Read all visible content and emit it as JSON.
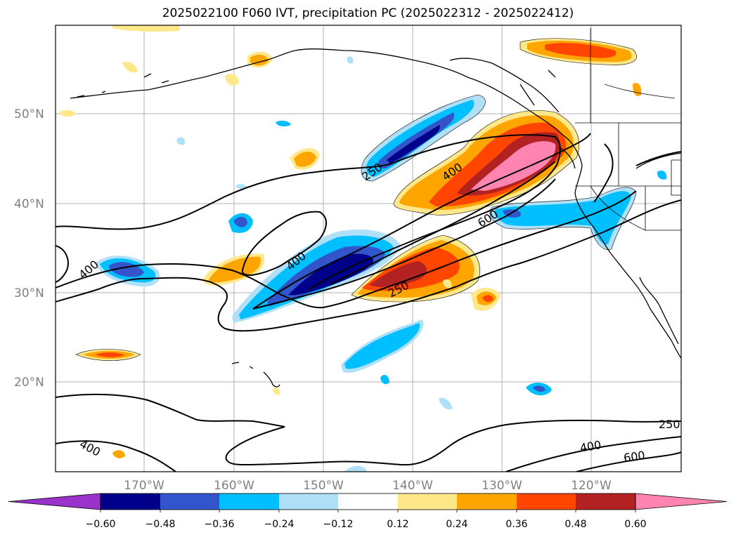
{
  "title": "2025022100 F060 IVT, precipitation PC (2025022312 - 2025022412)",
  "map": {
    "lat_labels": [
      "50°N",
      "40°N",
      "30°N",
      "20°N"
    ],
    "lon_labels": [
      "170°W",
      "160°W",
      "150°W",
      "140°W",
      "130°W",
      "120°W"
    ],
    "contour_labels": [
      "250",
      "400",
      "600",
      "400",
      "400",
      "250",
      "400",
      "400",
      "600",
      "250"
    ]
  },
  "colorbar": {
    "ticks": [
      "−0.60",
      "−0.48",
      "−0.36",
      "−0.24",
      "−0.12",
      "0.12",
      "0.24",
      "0.36",
      "0.48",
      "0.60"
    ],
    "colors": [
      "#9933cc",
      "#00008b",
      "#3355cc",
      "#00bfff",
      "#b0e0f8",
      "#ffffff",
      "#ffe88a",
      "#ffa500",
      "#ff4500",
      "#b22222",
      "#ff85b0"
    ]
  }
}
